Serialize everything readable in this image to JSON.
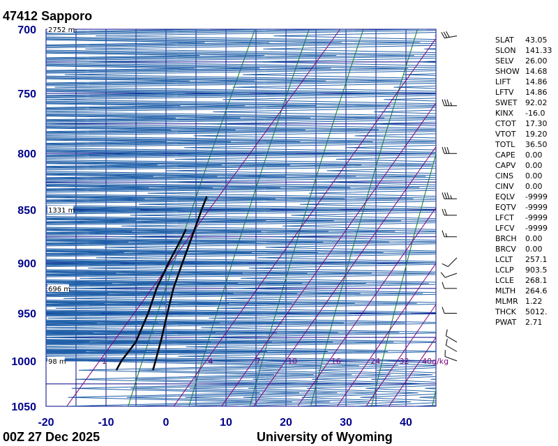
{
  "title": {
    "station_id": "47412",
    "station_name": "Sapporo"
  },
  "footer": {
    "time": "00Z 27 Dec 2025",
    "credit": "University of Wyoming"
  },
  "chart_data": {
    "type": "skew-t",
    "pressure_ticks": [
      "700",
      "750",
      "800",
      "850",
      "900",
      "950",
      "1000",
      "1050"
    ],
    "pressure_range_hpa": [
      700,
      1050
    ],
    "temperature_ticks": [
      "-20",
      "-10",
      "0",
      "10",
      "20",
      "30",
      "40"
    ],
    "temperature_range_c": [
      -20,
      45
    ],
    "height_labels": [
      {
        "p": 700,
        "text": "2752 m"
      },
      {
        "p": 850,
        "text": "1331 m"
      },
      {
        "p": 925,
        "text": "696 m"
      },
      {
        "p": 1000,
        "text": "98 m"
      }
    ],
    "mixing_ratio_labels": [
      "1",
      "4",
      "7",
      "10",
      "16",
      "24",
      "32",
      "40g/kg"
    ],
    "series": [
      {
        "name": "Temperature",
        "points": [
          {
            "p": 1010,
            "t": -7.0
          },
          {
            "p": 1000,
            "t": -7.8
          },
          {
            "p": 975,
            "t": -9.9
          },
          {
            "p": 950,
            "t": -12.2
          },
          {
            "p": 925,
            "t": -14.5
          },
          {
            "p": 900,
            "t": -16.4
          },
          {
            "p": 875,
            "t": -18.3
          },
          {
            "p": 850,
            "t": -20.3
          },
          {
            "p": 838,
            "t": -21.2
          }
        ]
      },
      {
        "name": "Dewpoint",
        "points": [
          {
            "p": 1010,
            "t": -13.1
          },
          {
            "p": 1000,
            "t": -13.5
          },
          {
            "p": 980,
            "t": -13.6
          },
          {
            "p": 950,
            "t": -15.4
          },
          {
            "p": 925,
            "t": -17.3
          },
          {
            "p": 900,
            "t": -18.7
          },
          {
            "p": 875,
            "t": -19.9
          },
          {
            "p": 868,
            "t": -20.3
          }
        ]
      }
    ],
    "wind_barbs": [
      {
        "p": 1000,
        "dir": 290,
        "kt": 10
      },
      {
        "p": 990,
        "dir": 300,
        "kt": 10
      },
      {
        "p": 980,
        "dir": 300,
        "kt": 10
      },
      {
        "p": 950,
        "dir": 270,
        "kt": 10
      },
      {
        "p": 925,
        "dir": 270,
        "kt": 10
      },
      {
        "p": 910,
        "dir": 250,
        "kt": 10
      },
      {
        "p": 895,
        "dir": 225,
        "kt": 10
      },
      {
        "p": 875,
        "dir": 270,
        "kt": 15
      },
      {
        "p": 855,
        "dir": 270,
        "kt": 20
      },
      {
        "p": 840,
        "dir": 270,
        "kt": 35
      },
      {
        "p": 800,
        "dir": 270,
        "kt": 30
      },
      {
        "p": 760,
        "dir": 270,
        "kt": 35
      },
      {
        "p": 705,
        "dir": 260,
        "kt": 30
      }
    ],
    "indices": [
      {
        "name": "SLAT",
        "value": "43.05"
      },
      {
        "name": "SLON",
        "value": "141.33"
      },
      {
        "name": "SELV",
        "value": "26.00"
      },
      {
        "name": "SHOW",
        "value": "14.68"
      },
      {
        "name": "LIFT",
        "value": "14.86"
      },
      {
        "name": "LFTV",
        "value": "14.86"
      },
      {
        "name": "SWET",
        "value": "92.02"
      },
      {
        "name": "KINX",
        "value": "-16.0"
      },
      {
        "name": "CTOT",
        "value": "17.30"
      },
      {
        "name": "VTOT",
        "value": "19.20"
      },
      {
        "name": "TOTL",
        "value": "36.50"
      },
      {
        "name": "CAPE",
        "value": "0.00"
      },
      {
        "name": "CAPV",
        "value": "0.00"
      },
      {
        "name": "CINS",
        "value": "0.00"
      },
      {
        "name": "CINV",
        "value": "0.00"
      },
      {
        "name": "EQLV",
        "value": "-9999"
      },
      {
        "name": "EQTV",
        "value": "-9999"
      },
      {
        "name": "LFCT",
        "value": "-9999"
      },
      {
        "name": "LFCV",
        "value": "-9999"
      },
      {
        "name": "BRCH",
        "value": "0.00"
      },
      {
        "name": "BRCV",
        "value": "0.00"
      },
      {
        "name": "LCLT",
        "value": "257.1"
      },
      {
        "name": "LCLP",
        "value": "903.5"
      },
      {
        "name": "LCLE",
        "value": "268.1"
      },
      {
        "name": "MLTH",
        "value": "264.6"
      },
      {
        "name": "MLMR",
        "value": "1.22"
      },
      {
        "name": "THCK",
        "value": "5012."
      },
      {
        "name": "PWAT",
        "value": "2.71"
      }
    ],
    "colors": {
      "grid": "#00008b",
      "dry_adiabat": "#008000",
      "moist_adiabat": "#1f5fa8",
      "mixing_ratio": "#800080",
      "axis_label": "#00008b",
      "sounding": "#000000"
    }
  }
}
